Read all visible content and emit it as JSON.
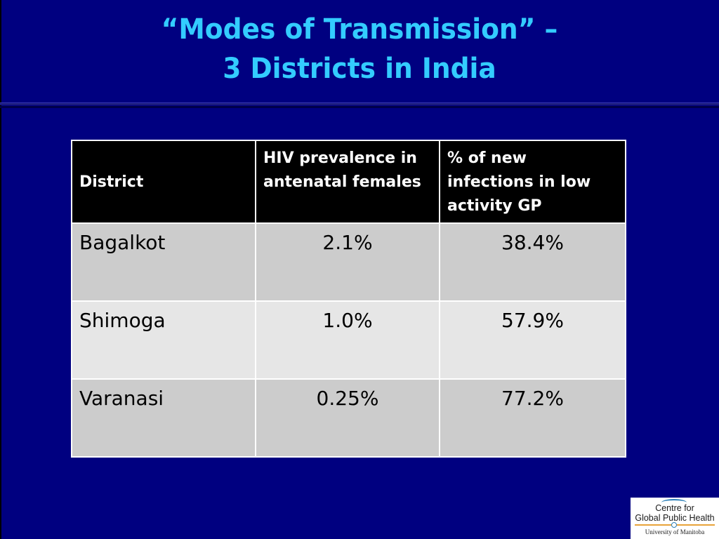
{
  "slide": {
    "title_line1": "“Modes of Transmission” –",
    "title_line2": "3 Districts in India"
  },
  "table": {
    "headers": [
      "District",
      "HIV prevalence in antenatal females",
      "% of new infections in low activity GP"
    ],
    "rows": [
      {
        "district": "Bagalkot",
        "hiv_prevalence": "2.1%",
        "new_infections": "38.4%"
      },
      {
        "district": "Shimoga",
        "hiv_prevalence": "1.0%",
        "new_infections": "57.9%"
      },
      {
        "district": "Varanasi",
        "hiv_prevalence": "0.25%",
        "new_infections": "77.2%"
      }
    ]
  },
  "logo": {
    "line1": "Centre for",
    "line2": "Global Public Health",
    "line3": "University of Manitoba"
  },
  "colors": {
    "background": "#000080",
    "title": "#33CCFF",
    "header_bg": "#000000",
    "row_dark": "#CCCCCC",
    "row_light": "#E6E6E6"
  }
}
